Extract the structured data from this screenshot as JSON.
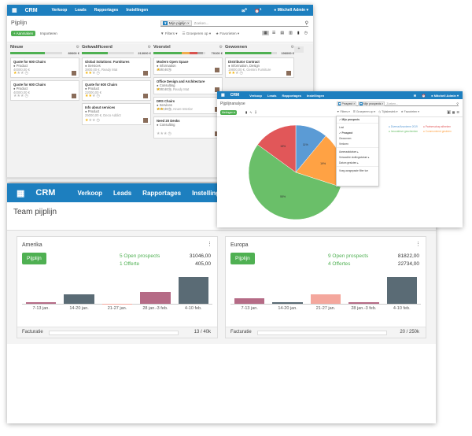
{
  "kanban": {
    "nav": {
      "app": "CRM",
      "menu": [
        "Verkoop",
        "Leads",
        "Rapportages",
        "Instellingen"
      ],
      "user": "Mitchell Admin",
      "badge1": "5",
      "badge2": "1"
    },
    "title": "Pijplijn",
    "create_label": "Aanmaken",
    "import_label": "Importeren",
    "search_tag": "Mijn pijplijn",
    "search_placeholder": "Zoeken...",
    "filters": "Filters",
    "group_by": "Groeperen op",
    "favorites": "Favorieten",
    "columns": [
      {
        "name": "Nieuw",
        "amount": "80000 €",
        "progress": [
          0.66,
          0,
          0,
          0
        ],
        "cards": [
          {
            "title": "Quote for 600 Chairs",
            "tag": "Product",
            "amount": "40000,00 €",
            "sub": "",
            "stars": 1
          },
          {
            "title": "Quote for 600 Chairs",
            "tag": "Product",
            "amount": "40000,00 €",
            "sub": "",
            "stars": 0
          }
        ]
      },
      {
        "name": "Gekwalificeerd",
        "amount": "213000 €",
        "progress": [
          0.5,
          0,
          0,
          0
        ],
        "cards": [
          {
            "title": "Global Solutions: Furnitures",
            "tag": "Services",
            "amount": "3800,00 €, Ready Mat",
            "sub": "",
            "stars": 2
          },
          {
            "title": "Quote for 600 Chairs",
            "tag": "Product",
            "amount": "22000,00 €",
            "sub": "",
            "stars": 2
          },
          {
            "title": "Info about services",
            "tag": "Product",
            "amount": "25000,00 €, Deco Addict",
            "sub": "",
            "stars": 1
          }
        ]
      },
      {
        "name": "Voorstel",
        "amount": "79100 €",
        "progress": [
          0.55,
          0.15,
          0.15,
          0.1
        ],
        "cards": [
          {
            "title": "Modern Open Space",
            "tag": "Information",
            "amount": "4500,00 €",
            "sub": "",
            "stars": 1
          },
          {
            "title": "Office Design and Architecture",
            "tag": "Consulting",
            "amount": "9000,00 €, Ready Mat",
            "sub": "",
            "stars": 1
          },
          {
            "title": "DRS Chairs",
            "tag": "Services",
            "amount": "1000,00 €, Azure Interior",
            "sub": "",
            "stars": 2
          },
          {
            "title": "Need 20 Desks",
            "tag": "Consulting",
            "amount": "",
            "sub": "",
            "stars": 0
          }
        ]
      },
      {
        "name": "Gewonnen",
        "amount": "196000 €",
        "progress": [
          0.9,
          0,
          0,
          0
        ],
        "cards": [
          {
            "title": "Distributor Contract",
            "tag": "Information, Design",
            "amount": "19800,00 €, Gemini Furniture",
            "sub": "",
            "stars": 2
          }
        ]
      }
    ]
  },
  "pie": {
    "nav": {
      "app": "CRM",
      "menu": [
        "Verkoop",
        "Leads",
        "Rapportages",
        "Instellingen"
      ],
      "user": "Mitchell Admin"
    },
    "title": "Pijplijnanalyse",
    "measures": "Metingen",
    "facets": [
      "Prospect",
      "Mijn prospects"
    ],
    "search_placeholder": "Zoeken...",
    "toolbar": [
      "Filters",
      "Groeperen op",
      "Tijdsbestek",
      "Favorieten"
    ],
    "dropdown": [
      "Mijn prospects",
      "Lost",
      "Prospect",
      "Gewonnen",
      "Verloren",
      "Aanmaakdatum",
      "Verwachte sluitingsdatum",
      "Datum gesloten",
      "Voeg aangepaste filter toe"
    ],
    "legend": [
      "Diverse/Anonieme 2019",
      "Partnerschap afbreken",
      "Innovatieve geschenken",
      "Communieerd gesloten"
    ],
    "slice_labels": [
      "11%",
      "19%",
      "55%",
      "15%"
    ]
  },
  "chart_data": {
    "type": "pie",
    "values": [
      11,
      19,
      55,
      15
    ],
    "colors": [
      "#5b9bd5",
      "#ffa244",
      "#6abf69",
      "#e15759"
    ]
  },
  "dashboard": {
    "nav": {
      "app": "CRM",
      "menu": [
        "Verkoop",
        "Leads",
        "Rapportages",
        "Instellingen"
      ]
    },
    "title": "Team pijplijn",
    "teams": [
      {
        "name": "Amerika",
        "button": "Pijplijn",
        "open": "5 Open prospects",
        "quotes": "1 Offerte",
        "open_amt": "31046,00",
        "quote_amt": "405,00",
        "invoicing": "Facturatie",
        "invoice_val": "13 / 40k",
        "weeks": [
          "7-13 jan.",
          "14-20 jan.",
          "21-27 jan.",
          "28 jan.-3 feb.",
          "4-10 feb."
        ],
        "bars": [
          0.05,
          0.35,
          0,
          0.45,
          1.0
        ]
      },
      {
        "name": "Europa",
        "button": "Pijplijn",
        "open": "9 Open prospects",
        "quotes": "4 Offertes",
        "open_amt": "81822,00",
        "quote_amt": "22734,00",
        "invoicing": "Facturatie",
        "invoice_val": "20 / 250k",
        "weeks": [
          "7-13 jan.",
          "14-20 jan.",
          "21-27 jan.",
          "28 jan.-3 feb.",
          "4-10 feb."
        ],
        "bars": [
          0.2,
          0.05,
          0.35,
          0.05,
          1.0
        ]
      }
    ]
  }
}
